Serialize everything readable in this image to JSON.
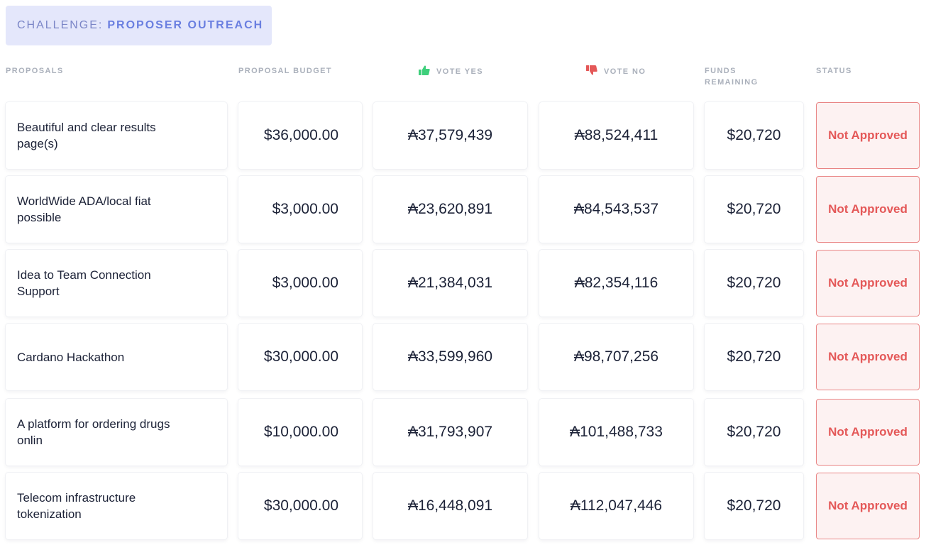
{
  "challenge": {
    "prefix": "CHALLENGE:",
    "name": "PROPOSER OUTREACH"
  },
  "headers": {
    "proposals": "PROPOSALS",
    "budget": "PROPOSAL BUDGET",
    "vote_yes": "VOTE YES",
    "vote_no": "VOTE NO",
    "funds": "FUNDS REMAINING",
    "status": "STATUS"
  },
  "icons": {
    "vote_yes": "thumbs-up-icon",
    "vote_no": "thumbs-down-icon"
  },
  "colors": {
    "accent": "#6a7fe0",
    "yes": "#3ecf7b",
    "no": "#e45858",
    "status_border": "#e98585",
    "status_bg": "#fdf2f2"
  },
  "proposals": [
    {
      "name": "Beautiful and clear results page(s)",
      "budget": "$36,000.00",
      "vote_yes": "₳37,579,439",
      "vote_no": "₳88,524,411",
      "funds_remaining": "$20,720",
      "status": "Not Approved"
    },
    {
      "name": "WorldWide ADA/local fiat possible",
      "budget": "$3,000.00",
      "vote_yes": "₳23,620,891",
      "vote_no": "₳84,543,537",
      "funds_remaining": "$20,720",
      "status": "Not Approved"
    },
    {
      "name": "Idea to Team Connection Support",
      "budget": "$3,000.00",
      "vote_yes": "₳21,384,031",
      "vote_no": "₳82,354,116",
      "funds_remaining": "$20,720",
      "status": "Not Approved"
    },
    {
      "name": "Cardano Hackathon",
      "budget": "$30,000.00",
      "vote_yes": "₳33,599,960",
      "vote_no": "₳98,707,256",
      "funds_remaining": "$20,720",
      "status": "Not Approved"
    },
    {
      "name": "A platform for ordering drugs onlin",
      "budget": "$10,000.00",
      "vote_yes": "₳31,793,907",
      "vote_no": "₳101,488,733",
      "funds_remaining": "$20,720",
      "status": "Not Approved"
    },
    {
      "name": "Telecom infrastructure tokenization",
      "budget": "$30,000.00",
      "vote_yes": "₳16,448,091",
      "vote_no": "₳112,047,446",
      "funds_remaining": "$20,720",
      "status": "Not Approved"
    }
  ]
}
